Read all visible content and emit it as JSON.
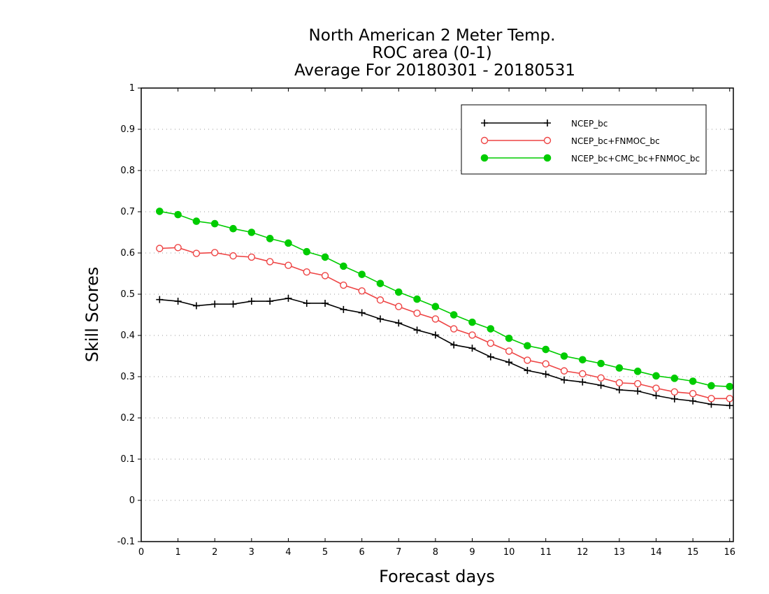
{
  "chart_data": {
    "type": "line",
    "title": [
      "North American 2 Meter Temp.",
      "ROC area (0-1)",
      "Average For 20180301 - 20180531"
    ],
    "xlabel": "Forecast days",
    "ylabel": "Skill Scores",
    "xlim": [
      0,
      16.1
    ],
    "ylim": [
      -0.1,
      1
    ],
    "xticks": [
      0,
      1,
      2,
      3,
      4,
      5,
      6,
      7,
      8,
      9,
      10,
      11,
      12,
      13,
      14,
      15,
      16
    ],
    "xtick_labels": [
      "0",
      "1",
      "2",
      "3",
      "4",
      "5",
      "6",
      "7",
      "8",
      "9",
      "10",
      "11",
      "12",
      "13",
      "14",
      "15",
      "16"
    ],
    "yticks": [
      -0.1,
      0,
      0.1,
      0.2,
      0.3,
      0.4,
      0.5,
      0.6,
      0.7,
      0.8,
      0.9,
      1
    ],
    "ytick_labels": [
      "-0.1",
      "0",
      "0.1",
      "0.2",
      "0.3",
      "0.4",
      "0.5",
      "0.6",
      "0.7",
      "0.8",
      "0.9",
      "1"
    ],
    "grid": "horizontal-dotted",
    "legend_position": "top-right",
    "x": [
      0.5,
      1,
      1.5,
      2,
      2.5,
      3,
      3.5,
      4,
      4.5,
      5,
      5.5,
      6,
      6.5,
      7,
      7.5,
      8,
      8.5,
      9,
      9.5,
      10,
      10.5,
      11,
      11.5,
      12,
      12.5,
      13,
      13.5,
      14,
      14.5,
      15,
      15.5,
      16
    ],
    "series": [
      {
        "name": "NCEP_bc",
        "color": "#000000",
        "marker": "plus",
        "values": [
          0.487,
          0.483,
          0.472,
          0.476,
          0.476,
          0.483,
          0.483,
          0.49,
          0.478,
          0.478,
          0.463,
          0.455,
          0.44,
          0.43,
          0.413,
          0.401,
          0.377,
          0.369,
          0.348,
          0.335,
          0.315,
          0.306,
          0.292,
          0.287,
          0.279,
          0.268,
          0.265,
          0.254,
          0.246,
          0.241,
          0.233,
          0.23
        ]
      },
      {
        "name": "NCEP_bc+FNMOC_bc",
        "color": "#ee4444",
        "marker": "open-circle",
        "values": [
          0.611,
          0.613,
          0.599,
          0.601,
          0.593,
          0.59,
          0.579,
          0.57,
          0.554,
          0.545,
          0.522,
          0.508,
          0.486,
          0.47,
          0.454,
          0.44,
          0.416,
          0.401,
          0.381,
          0.362,
          0.34,
          0.331,
          0.314,
          0.307,
          0.297,
          0.285,
          0.283,
          0.272,
          0.263,
          0.259,
          0.247,
          0.247
        ]
      },
      {
        "name": "NCEP_bc+CMC_bc+FNMOC_bc",
        "color": "#00cc00",
        "marker": "filled-circle",
        "values": [
          0.701,
          0.693,
          0.677,
          0.671,
          0.659,
          0.65,
          0.635,
          0.624,
          0.603,
          0.59,
          0.568,
          0.548,
          0.526,
          0.505,
          0.488,
          0.47,
          0.45,
          0.432,
          0.416,
          0.393,
          0.375,
          0.366,
          0.35,
          0.341,
          0.332,
          0.321,
          0.313,
          0.302,
          0.296,
          0.289,
          0.278,
          0.276
        ]
      }
    ]
  }
}
